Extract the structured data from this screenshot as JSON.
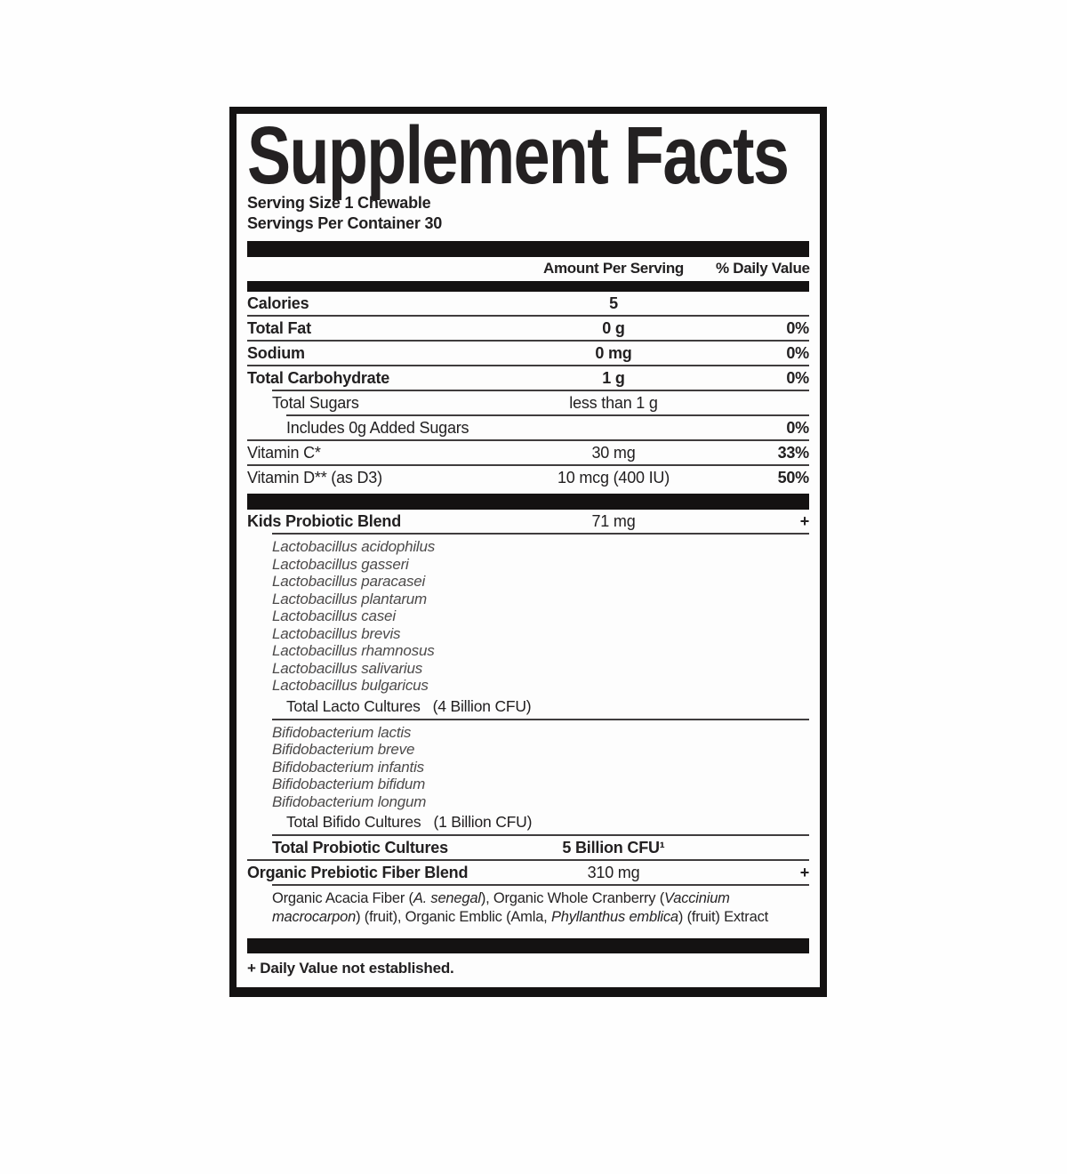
{
  "label": {
    "title": "Supplement Facts",
    "serving_size": "Serving Size 1 Chewable",
    "servings_per_container": "Servings Per Container 30",
    "columns": {
      "amount": "Amount Per Serving",
      "daily_value": "% Daily Value"
    },
    "nutrients": [
      {
        "name": "Calories",
        "amount": "5",
        "dv": ""
      },
      {
        "name": "Total Fat",
        "amount": "0 g",
        "dv": "0%"
      },
      {
        "name": "Sodium",
        "amount": "0 mg",
        "dv": "0%"
      },
      {
        "name": "Total Carbohydrate",
        "amount": "1 g",
        "dv": "0%"
      },
      {
        "name": "Total Sugars",
        "amount": "less than 1 g",
        "dv": ""
      },
      {
        "name": "Includes 0g Added Sugars",
        "amount": "",
        "dv": "0%"
      },
      {
        "name": "Vitamin C*",
        "amount": "30 mg",
        "dv": "33%"
      },
      {
        "name": "Vitamin D** (as D3)",
        "amount": "10 mcg (400 IU)",
        "dv": "50%"
      }
    ],
    "probiotic_blend": {
      "name": "Kids Probiotic Blend",
      "amount": "71 mg",
      "dv": "+",
      "lacto_species": [
        "Lactobacillus acidophilus",
        "Lactobacillus gasseri",
        "Lactobacillus paracasei",
        "Lactobacillus plantarum",
        "Lactobacillus casei",
        "Lactobacillus brevis",
        "Lactobacillus rhamnosus",
        "Lactobacillus salivarius",
        "Lactobacillus bulgaricus"
      ],
      "lacto_total_label": "Total Lacto Cultures",
      "lacto_total_amount": "(4 Billion CFU)",
      "bifido_species": [
        "Bifidobacterium lactis",
        "Bifidobacterium breve",
        "Bifidobacterium infantis",
        "Bifidobacterium bifidum",
        "Bifidobacterium longum"
      ],
      "bifido_total_label": "Total Bifido Cultures",
      "bifido_total_amount": "(1 Billion CFU)",
      "total_cultures_label": "Total Probiotic Cultures",
      "total_cultures_amount": "5 Billion CFU¹"
    },
    "prebiotic_blend": {
      "name": "Organic Prebiotic Fiber Blend",
      "amount": "310 mg",
      "dv": "+",
      "description_segments": [
        {
          "text": "Organic Acacia Fiber (",
          "italic": false
        },
        {
          "text": "A. senegal",
          "italic": true
        },
        {
          "text": "), Organic Whole Cranberry (",
          "italic": false
        },
        {
          "text": "Vaccinium macrocarpon",
          "italic": true
        },
        {
          "text": ") (fruit), Organic Emblic (Amla, ",
          "italic": false
        },
        {
          "text": "Phyllanthus emblica",
          "italic": true
        },
        {
          "text": ") (fruit) Extract",
          "italic": false
        }
      ]
    },
    "footnote": "+ Daily Value not established."
  },
  "colors": {
    "ink": "#222021",
    "bar": "#141212",
    "line": "#403d3e",
    "muted": "#4c4a4a",
    "paper": "#fdfdfd",
    "page": "#fefefe"
  }
}
